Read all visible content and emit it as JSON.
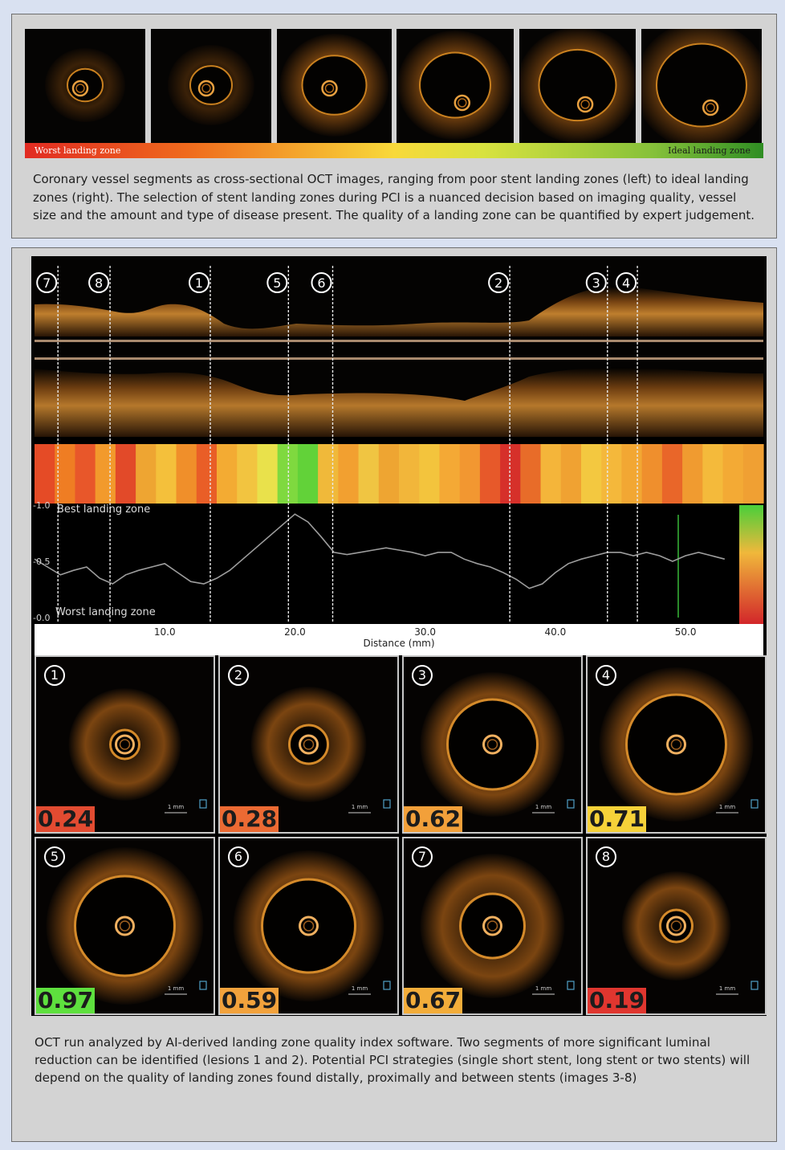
{
  "top_panel": {
    "thumbnails": [
      {
        "lumen_r": 22,
        "dark": true
      },
      {
        "lumen_r": 26,
        "dark": true
      },
      {
        "lumen_r": 40,
        "dark": false
      },
      {
        "lumen_r": 44,
        "dark": false
      },
      {
        "lumen_r": 48,
        "dark": false
      },
      {
        "lumen_r": 56,
        "dark": false
      }
    ],
    "gradient_left_label": "Worst landing zone",
    "gradient_right_label": "Ideal landing zone",
    "caption": "Coronary vessel segments as cross-sectional OCT images, ranging from poor stent landing zones (left) to ideal landing zones (right). The selection of stent landing zones during PCI is a nuanced decision based on imaging quality, vessel size and the amount and type of disease present. The quality of a landing zone can be quantified by expert judgement."
  },
  "chart_data": {
    "type": "line",
    "xlabel": "Distance (mm)",
    "ylabel": "",
    "xlim": [
      0,
      54
    ],
    "ylim": [
      0,
      1
    ],
    "x_tick_labels": [
      "10.0",
      "20.0",
      "30.0",
      "40.0",
      "50.0"
    ],
    "x_ticks": [
      10,
      20,
      30,
      40,
      50
    ],
    "y_tick_labels": [
      "-1.0",
      "-0.5",
      "-0.0"
    ],
    "y_ticks": [
      1.0,
      0.5,
      0.0
    ],
    "top_annotation": "Best landing zone",
    "bottom_annotation": "Worst landing zone",
    "series": [
      {
        "x": [
          0,
          1,
          2,
          3,
          4,
          5,
          6,
          7,
          8,
          9,
          10,
          11,
          12,
          13,
          14,
          15,
          16,
          17,
          18,
          19,
          20,
          21,
          22,
          23,
          24,
          25,
          26,
          27,
          28,
          29,
          30,
          31,
          32,
          33,
          34,
          35,
          36,
          37,
          38,
          39,
          40,
          41,
          42,
          43,
          44,
          45,
          46,
          47,
          48,
          49,
          50,
          51,
          52,
          53
        ],
        "values": [
          0.52,
          0.45,
          0.38,
          0.42,
          0.45,
          0.35,
          0.3,
          0.38,
          0.42,
          0.45,
          0.48,
          0.4,
          0.32,
          0.3,
          0.35,
          0.42,
          0.52,
          0.62,
          0.72,
          0.82,
          0.92,
          0.85,
          0.72,
          0.58,
          0.56,
          0.58,
          0.6,
          0.62,
          0.6,
          0.58,
          0.55,
          0.58,
          0.58,
          0.52,
          0.48,
          0.45,
          0.4,
          0.34,
          0.26,
          0.3,
          0.4,
          0.48,
          0.52,
          0.55,
          0.58,
          0.58,
          0.55,
          0.58,
          0.55,
          0.5,
          0.55,
          0.58,
          0.55,
          0.52
        ]
      }
    ],
    "lesion_markers": [
      {
        "label": "7",
        "x": 1.8
      },
      {
        "label": "8",
        "x": 5.8
      },
      {
        "label": "1",
        "x": 13.5
      },
      {
        "label": "5",
        "x": 19.5
      },
      {
        "label": "6",
        "x": 22.9
      },
      {
        "label": "2",
        "x": 36.5
      },
      {
        "label": "3",
        "x": 44.0
      },
      {
        "label": "4",
        "x": 46.3
      }
    ],
    "heatmap_colors": [
      "#e54b26",
      "#ef7d23",
      "#e8572a",
      "#f29a2c",
      "#e24a29",
      "#eea532",
      "#f4c03b",
      "#f08f2a",
      "#e95e27",
      "#f3ab33",
      "#f2c440",
      "#e9e14b",
      "#7fd93f",
      "#62d239",
      "#f0b93a",
      "#f2a030",
      "#f0c542",
      "#eea532",
      "#f2b63a",
      "#f3c43d",
      "#f4a935",
      "#f29731",
      "#e7592a",
      "#d6302a",
      "#e86c29",
      "#f4b53a",
      "#f0a232",
      "#f3c840",
      "#f4b83b",
      "#f2a733",
      "#ef8f2d",
      "#e96629",
      "#f09b30",
      "#f4ba3b",
      "#f3aa35",
      "#f0a033"
    ]
  },
  "oct_tiles": [
    {
      "num": "1",
      "score": "0.24",
      "score_color": "#e24b31",
      "lumen_r": 18,
      "wall_r": 50
    },
    {
      "num": "2",
      "score": "0.28",
      "score_color": "#ec6a33",
      "lumen_r": 24,
      "wall_r": 52
    },
    {
      "num": "3",
      "score": "0.62",
      "score_color": "#f2a03a",
      "lumen_r": 56,
      "wall_r": 70
    },
    {
      "num": "4",
      "score": "0.71",
      "score_color": "#f6d239",
      "lumen_r": 62,
      "wall_r": 76
    },
    {
      "num": "5",
      "score": "0.97",
      "score_color": "#5ee03e",
      "lumen_r": 62,
      "wall_r": 78
    },
    {
      "num": "6",
      "score": "0.59",
      "score_color": "#f2a23c",
      "lumen_r": 58,
      "wall_r": 74
    },
    {
      "num": "7",
      "score": "0.67",
      "score_color": "#f3ad3a",
      "lumen_r": 40,
      "wall_r": 70
    },
    {
      "num": "8",
      "score": "0.19",
      "score_color": "#e0362f",
      "lumen_r": 20,
      "wall_r": 48
    }
  ],
  "scale_bar_label": "1 mm",
  "bottom_caption": "OCT run analyzed by AI-derived landing zone quality index software. Two segments of more significant luminal reduction can be identified (lesions 1 and 2). Potential PCI strategies (single short stent, long stent or two stents) will depend on the quality of landing zones found distally, proximally and between stents (images 3-8)"
}
